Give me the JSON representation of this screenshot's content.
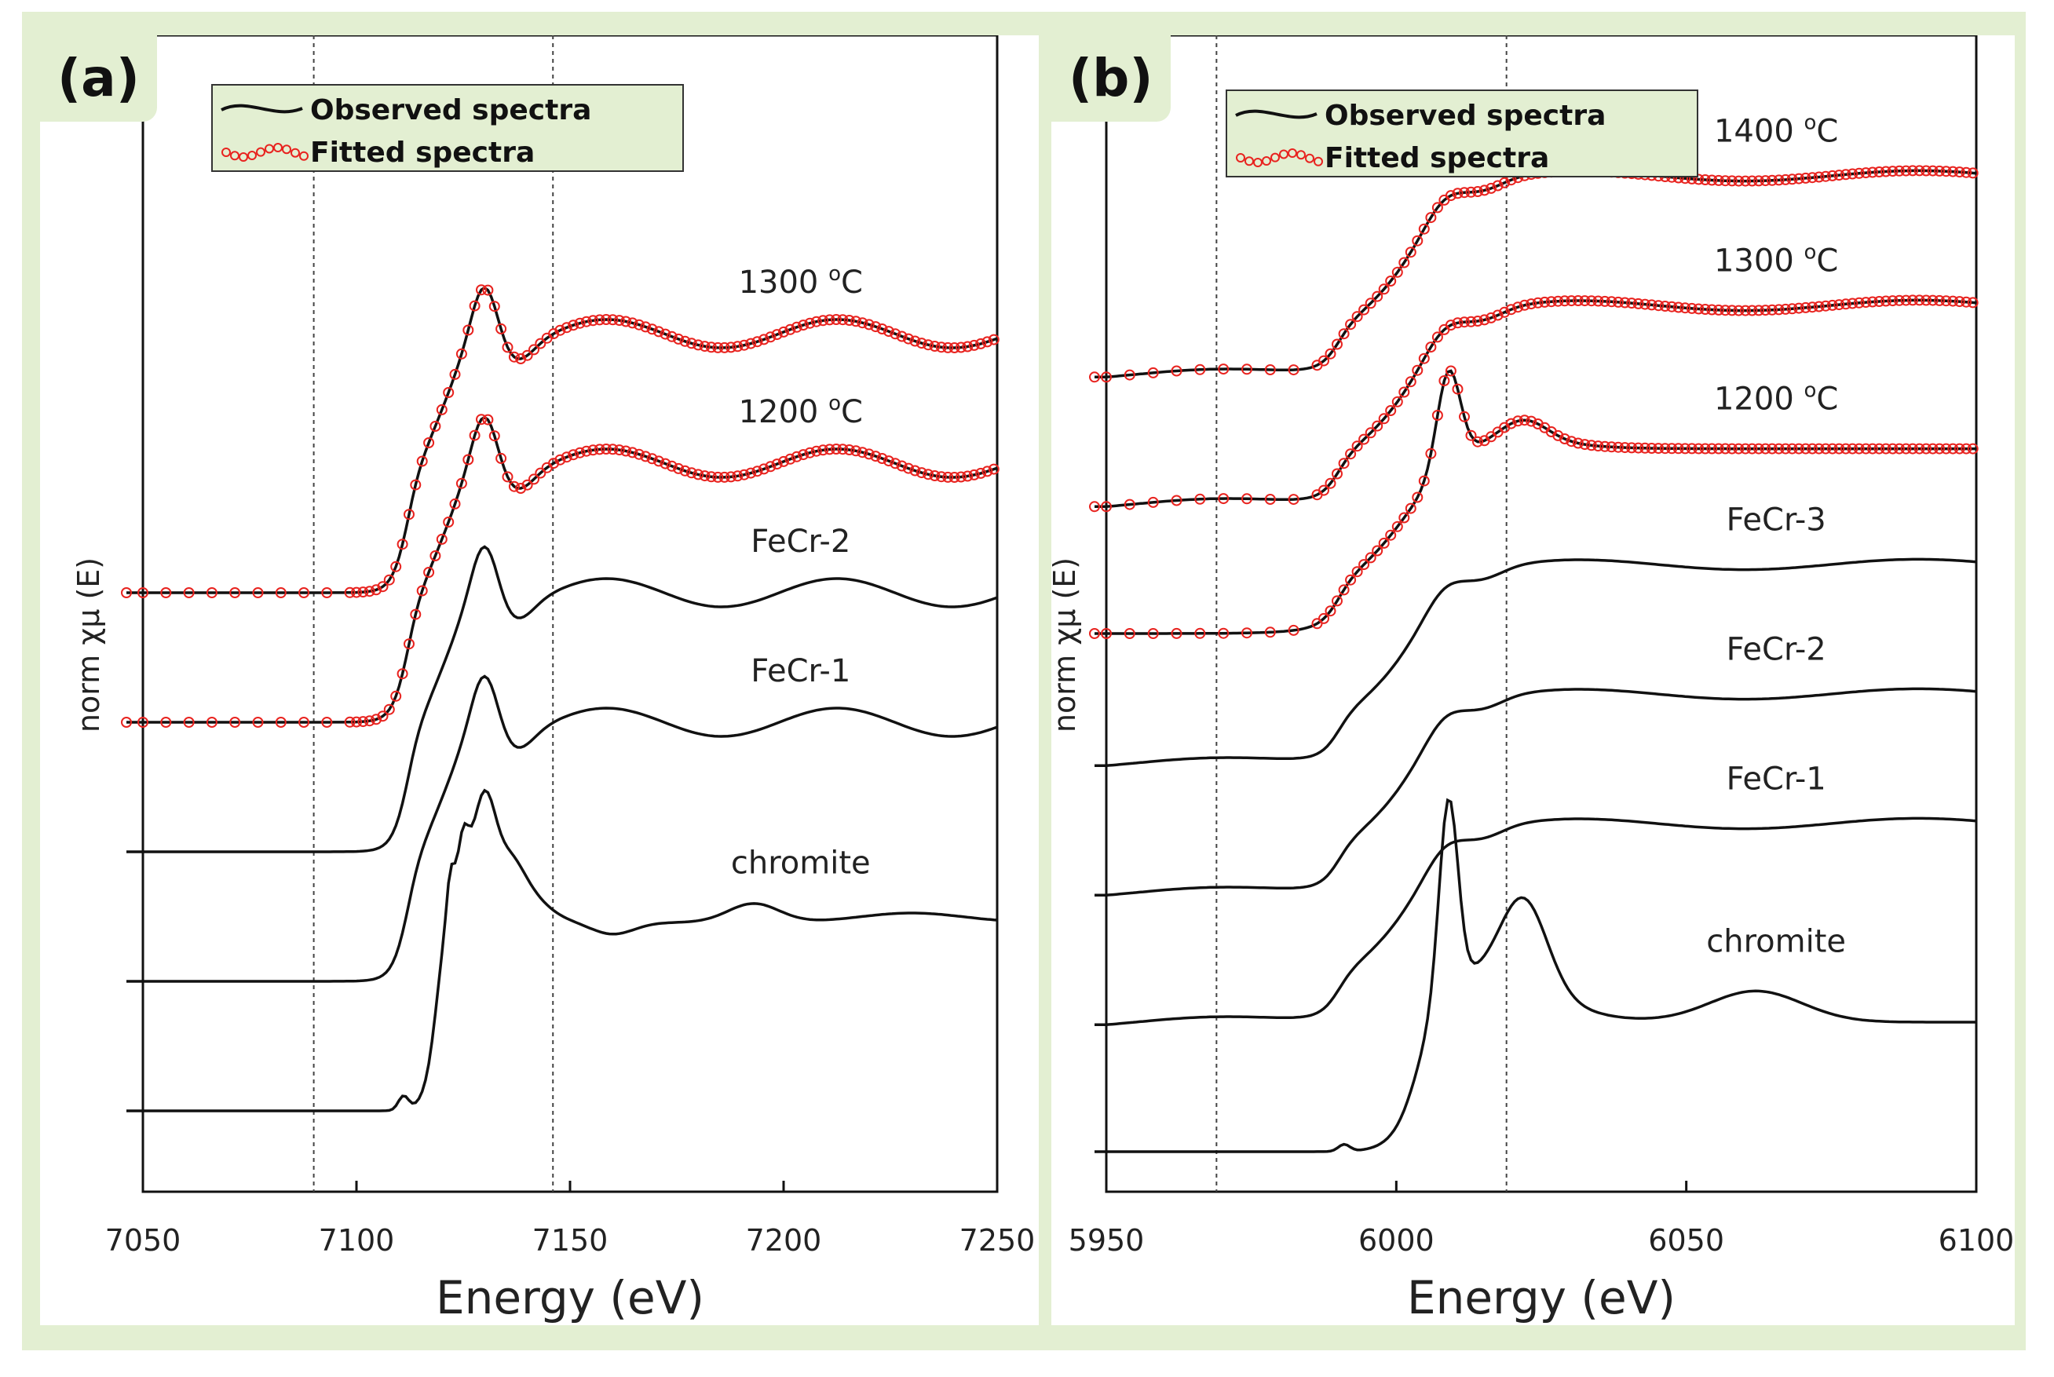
{
  "chart_data": [
    {
      "panel_label": "(a)",
      "type": "line",
      "xlabel": "Energy (eV)",
      "ylabel": "norm χμ (E)",
      "xlim": [
        7050,
        7250
      ],
      "xticks": [
        "7050",
        "7100",
        "7150",
        "7200",
        "7250"
      ],
      "xtick_values": [
        7050,
        7100,
        7150,
        7200,
        7250
      ],
      "reference_lines": [
        7090,
        7146
      ],
      "legend": {
        "placement": "top-left",
        "entries": [
          "Observed spectra",
          "Fitted spectra"
        ]
      },
      "series": [
        {
          "name": "chromite",
          "label": "chromite",
          "kind": "reference",
          "offset": 0,
          "fitted": false,
          "shape": "chromite"
        },
        {
          "name": "FeCr-1",
          "label": "FeCr-1",
          "kind": "reference",
          "offset": 1,
          "fitted": false,
          "shape": "fecr"
        },
        {
          "name": "FeCr-2",
          "label": "FeCr-2",
          "kind": "reference",
          "offset": 2,
          "fitted": false,
          "shape": "fecr"
        },
        {
          "name": "1200 °C",
          "label_main": "1200 ",
          "label_sup": "o",
          "label_unit": "C",
          "kind": "sample",
          "offset": 3,
          "fitted": true,
          "shape": "fecr"
        },
        {
          "name": "1300 °C",
          "label_main": "1300 ",
          "label_sup": "o",
          "label_unit": "C",
          "kind": "sample",
          "offset": 4,
          "fitted": true,
          "shape": "fecr"
        }
      ],
      "colors": {
        "observed": "#111111",
        "fitted": "#e8231f",
        "axis": "#111111"
      }
    },
    {
      "panel_label": "(b)",
      "type": "line",
      "xlabel": "Energy (eV)",
      "ylabel": "norm χμ (E)",
      "xlim": [
        5950,
        6100
      ],
      "xticks": [
        "5950",
        "6000",
        "6050",
        "6100"
      ],
      "xtick_values": [
        5950,
        6000,
        6050,
        6100
      ],
      "reference_lines": [
        5969,
        6019
      ],
      "legend": {
        "placement": "top-left",
        "entries": [
          "Observed spectra",
          "Fitted spectra"
        ]
      },
      "series": [
        {
          "name": "chromite",
          "label": "chromite",
          "kind": "reference",
          "offset": 0,
          "fitted": false,
          "shape": "chromite"
        },
        {
          "name": "FeCr-1",
          "label": "FeCr-1",
          "kind": "reference",
          "offset": 1,
          "fitted": false,
          "shape": "fecr"
        },
        {
          "name": "FeCr-2",
          "label": "FeCr-2",
          "kind": "reference",
          "offset": 2,
          "fitted": false,
          "shape": "fecr"
        },
        {
          "name": "FeCr-3",
          "label": "FeCr-3",
          "kind": "reference",
          "offset": 3,
          "fitted": false,
          "shape": "fecr"
        },
        {
          "name": "1200 °C",
          "label_main": "1200 ",
          "label_sup": "o",
          "label_unit": "C",
          "kind": "sample",
          "offset": 4,
          "fitted": true,
          "shape": "chromite_mix"
        },
        {
          "name": "1300 °C",
          "label_main": "1300 ",
          "label_sup": "o",
          "label_unit": "C",
          "kind": "sample",
          "offset": 5,
          "fitted": true,
          "shape": "fecr"
        },
        {
          "name": "1400 °C",
          "label_main": "1400 ",
          "label_sup": "o",
          "label_unit": "C",
          "kind": "sample",
          "offset": 6,
          "fitted": true,
          "shape": "fecr"
        }
      ],
      "colors": {
        "observed": "#111111",
        "fitted": "#e8231f",
        "axis": "#111111"
      }
    }
  ]
}
